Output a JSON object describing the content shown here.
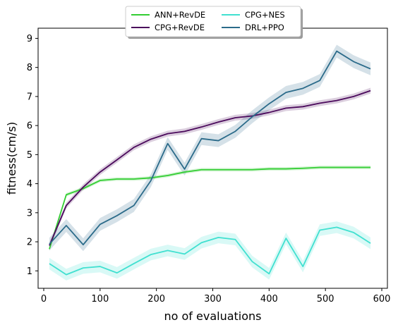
{
  "chart_data": {
    "type": "line",
    "title": "",
    "xlabel": "no of evaluations",
    "ylabel": "fitness(cm/s)",
    "xlim": [
      -10,
      610
    ],
    "ylim": [
      0.4,
      9.35
    ],
    "xticks": [
      0,
      100,
      200,
      300,
      400,
      500,
      600
    ],
    "yticks": [
      1,
      2,
      3,
      4,
      5,
      6,
      7,
      8,
      9
    ],
    "grid": false,
    "legend_position": "top-center",
    "series": [
      {
        "name": "ANN+RevDE",
        "color": "#32cd32",
        "x": [
          10,
          40,
          70,
          100,
          130,
          160,
          190,
          220,
          250,
          280,
          310,
          340,
          370,
          400,
          430,
          460,
          490,
          520,
          550,
          580
        ],
        "y": [
          1.75,
          3.62,
          3.83,
          4.11,
          4.16,
          4.16,
          4.2,
          4.28,
          4.4,
          4.48,
          4.48,
          4.48,
          4.48,
          4.51,
          4.51,
          4.53,
          4.56,
          4.56,
          4.56,
          4.56
        ],
        "band": 0.06
      },
      {
        "name": "CPG+RevDE",
        "color": "#4b0a5c",
        "x": [
          10,
          40,
          70,
          100,
          130,
          160,
          190,
          220,
          250,
          280,
          310,
          340,
          370,
          400,
          430,
          460,
          490,
          520,
          550,
          580
        ],
        "y": [
          1.87,
          3.25,
          3.88,
          4.4,
          4.82,
          5.25,
          5.53,
          5.72,
          5.8,
          5.95,
          6.12,
          6.27,
          6.33,
          6.45,
          6.6,
          6.65,
          6.77,
          6.86,
          7.0,
          7.2
        ],
        "band": 0.1
      },
      {
        "name": "CPG+NES",
        "color": "#40e0d0",
        "x": [
          10,
          40,
          70,
          100,
          130,
          160,
          190,
          220,
          250,
          280,
          310,
          340,
          370,
          400,
          430,
          460,
          490,
          520,
          550,
          580
        ],
        "y": [
          1.25,
          0.87,
          1.1,
          1.15,
          0.93,
          1.25,
          1.56,
          1.7,
          1.58,
          1.97,
          2.15,
          2.08,
          1.32,
          0.9,
          2.12,
          1.15,
          2.4,
          2.5,
          2.32,
          1.95
        ],
        "band": 0.2
      },
      {
        "name": "DRL+PPO",
        "color": "#2b6b8a",
        "x": [
          10,
          40,
          70,
          100,
          130,
          160,
          190,
          220,
          250,
          280,
          310,
          340,
          370,
          400,
          430,
          460,
          490,
          520,
          550,
          580
        ],
        "y": [
          1.92,
          2.56,
          1.9,
          2.6,
          2.9,
          3.25,
          4.1,
          5.38,
          4.5,
          5.55,
          5.48,
          5.8,
          6.3,
          6.75,
          7.14,
          7.28,
          7.55,
          8.56,
          8.2,
          7.95
        ],
        "band": 0.22
      }
    ]
  }
}
